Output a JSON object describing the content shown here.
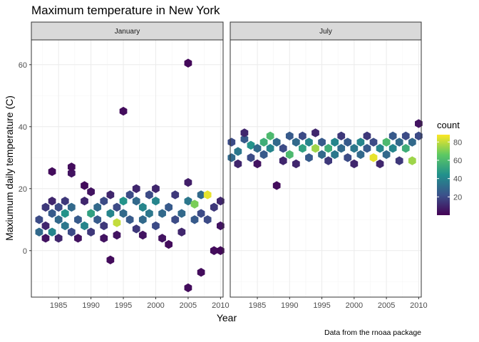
{
  "chart_data": {
    "type": "heatmap",
    "subtype": "hexbin",
    "title": "Maximum temperature in New York",
    "xlabel": "Year",
    "ylabel": "Maxiumum daily temperature (C)",
    "caption": "Data from the rnoaa package",
    "xlim": [
      1980.8,
      2010.4
    ],
    "ylim": [
      -15,
      68
    ],
    "x_ticks": [
      1985,
      1990,
      1995,
      2000,
      2005,
      2010
    ],
    "y_ticks": [
      0,
      20,
      40,
      60
    ],
    "grid": true,
    "facets": [
      {
        "label": "January",
        "bins": [
          [
            1982,
            10,
            20
          ],
          [
            1982,
            6,
            30
          ],
          [
            1983,
            14,
            15
          ],
          [
            1983,
            4,
            5
          ],
          [
            1983,
            8,
            10
          ],
          [
            1984,
            12,
            25
          ],
          [
            1984,
            16,
            10
          ],
          [
            1984,
            6,
            40
          ],
          [
            1984,
            25.5,
            3
          ],
          [
            1985,
            10,
            30
          ],
          [
            1985,
            14,
            20
          ],
          [
            1985,
            4,
            10
          ],
          [
            1986,
            12,
            45
          ],
          [
            1986,
            8,
            35
          ],
          [
            1986,
            16,
            15
          ],
          [
            1987,
            25,
            5
          ],
          [
            1987,
            27,
            3
          ],
          [
            1987,
            6,
            20
          ],
          [
            1987,
            14,
            30
          ],
          [
            1988,
            10,
            25
          ],
          [
            1988,
            4,
            5
          ],
          [
            1989,
            21,
            3
          ],
          [
            1989,
            16,
            10
          ],
          [
            1989,
            8,
            40
          ],
          [
            1990,
            12,
            50
          ],
          [
            1990,
            19,
            5
          ],
          [
            1990,
            6,
            15
          ],
          [
            1991,
            14,
            30
          ],
          [
            1991,
            10,
            25
          ],
          [
            1992,
            16,
            20
          ],
          [
            1992,
            8,
            15
          ],
          [
            1992,
            4,
            5
          ],
          [
            1993,
            12,
            40
          ],
          [
            1993,
            -3,
            3
          ],
          [
            1993,
            18,
            10
          ],
          [
            1994,
            9,
            80
          ],
          [
            1994,
            14,
            20
          ],
          [
            1994,
            5,
            5
          ],
          [
            1995,
            45,
            3
          ],
          [
            1995,
            16,
            45
          ],
          [
            1995,
            12,
            30
          ],
          [
            1996,
            18,
            20
          ],
          [
            1996,
            10,
            25
          ],
          [
            1997,
            16,
            30
          ],
          [
            1997,
            7,
            15
          ],
          [
            1997,
            20,
            10
          ],
          [
            1998,
            14,
            40
          ],
          [
            1998,
            10,
            30
          ],
          [
            1998,
            5,
            5
          ],
          [
            1999,
            18,
            20
          ],
          [
            1999,
            12,
            35
          ],
          [
            2000,
            16,
            40
          ],
          [
            2000,
            8,
            20
          ],
          [
            2000,
            20,
            10
          ],
          [
            2001,
            12,
            30
          ],
          [
            2001,
            4,
            5
          ],
          [
            2002,
            14,
            25
          ],
          [
            2002,
            2,
            3
          ],
          [
            2003,
            10,
            20
          ],
          [
            2003,
            18,
            15
          ],
          [
            2004,
            12,
            30
          ],
          [
            2004,
            6,
            10
          ],
          [
            2005,
            60.5,
            2
          ],
          [
            2005,
            16,
            35
          ],
          [
            2005,
            -12,
            3
          ],
          [
            2005,
            22,
            8
          ],
          [
            2006,
            15,
            70
          ],
          [
            2006,
            10,
            25
          ],
          [
            2007,
            18,
            30
          ],
          [
            2007,
            12,
            20
          ],
          [
            2007,
            -7,
            3
          ],
          [
            2008,
            18,
            85
          ],
          [
            2008,
            10,
            20
          ],
          [
            2009,
            14,
            15
          ],
          [
            2009,
            0,
            3
          ],
          [
            2010,
            16,
            10
          ],
          [
            2010,
            8,
            5
          ],
          [
            2010,
            0,
            2
          ]
        ]
      },
      {
        "label": "July",
        "bins": [
          [
            1981,
            35,
            20
          ],
          [
            1981,
            30,
            30
          ],
          [
            1982,
            32,
            35
          ],
          [
            1982,
            28,
            10
          ],
          [
            1983,
            36,
            25
          ],
          [
            1983,
            38,
            10
          ],
          [
            1984,
            34,
            45
          ],
          [
            1984,
            30,
            20
          ],
          [
            1985,
            33,
            30
          ],
          [
            1985,
            28,
            5
          ],
          [
            1986,
            35,
            55
          ],
          [
            1986,
            31,
            25
          ],
          [
            1987,
            37,
            60
          ],
          [
            1987,
            33,
            40
          ],
          [
            1988,
            35,
            30
          ],
          [
            1988,
            21,
            3
          ],
          [
            1989,
            33,
            20
          ],
          [
            1989,
            29,
            10
          ],
          [
            1990,
            37,
            25
          ],
          [
            1990,
            31,
            60
          ],
          [
            1991,
            35,
            30
          ],
          [
            1991,
            28,
            10
          ],
          [
            1992,
            33,
            50
          ],
          [
            1992,
            37,
            20
          ],
          [
            1993,
            35,
            40
          ],
          [
            1993,
            30,
            25
          ],
          [
            1994,
            33,
            75
          ],
          [
            1994,
            38,
            10
          ],
          [
            1995,
            31,
            30
          ],
          [
            1995,
            35,
            25
          ],
          [
            1996,
            33,
            55
          ],
          [
            1996,
            29,
            15
          ],
          [
            1997,
            35,
            40
          ],
          [
            1997,
            31,
            35
          ],
          [
            1998,
            33,
            30
          ],
          [
            1998,
            37,
            15
          ],
          [
            1999,
            35,
            25
          ],
          [
            1999,
            30,
            20
          ],
          [
            2000,
            33,
            35
          ],
          [
            2000,
            28,
            10
          ],
          [
            2001,
            35,
            40
          ],
          [
            2001,
            31,
            30
          ],
          [
            2002,
            33,
            25
          ],
          [
            2002,
            37,
            15
          ],
          [
            2003,
            30,
            85
          ],
          [
            2003,
            35,
            20
          ],
          [
            2004,
            33,
            40
          ],
          [
            2004,
            28,
            10
          ],
          [
            2005,
            35,
            60
          ],
          [
            2005,
            31,
            30
          ],
          [
            2006,
            37,
            25
          ],
          [
            2006,
            33,
            40
          ],
          [
            2007,
            35,
            30
          ],
          [
            2007,
            29,
            15
          ],
          [
            2008,
            33,
            55
          ],
          [
            2008,
            37,
            20
          ],
          [
            2009,
            29,
            75
          ],
          [
            2009,
            35,
            30
          ],
          [
            2010,
            41,
            5
          ],
          [
            2010,
            37,
            20
          ]
        ]
      }
    ],
    "legend": {
      "title": "count",
      "position": "right",
      "breaks": [
        20,
        40,
        60,
        80
      ],
      "range": [
        0,
        88
      ],
      "colors": [
        "#440154",
        "#3b528b",
        "#21908c",
        "#5dc963",
        "#fde725"
      ]
    },
    "colors": {
      "panel_border": "#333333",
      "strip_fill": "#d9d9d9",
      "grid_major": "#ebebeb",
      "grid_minor": "#f5f5f5"
    }
  }
}
